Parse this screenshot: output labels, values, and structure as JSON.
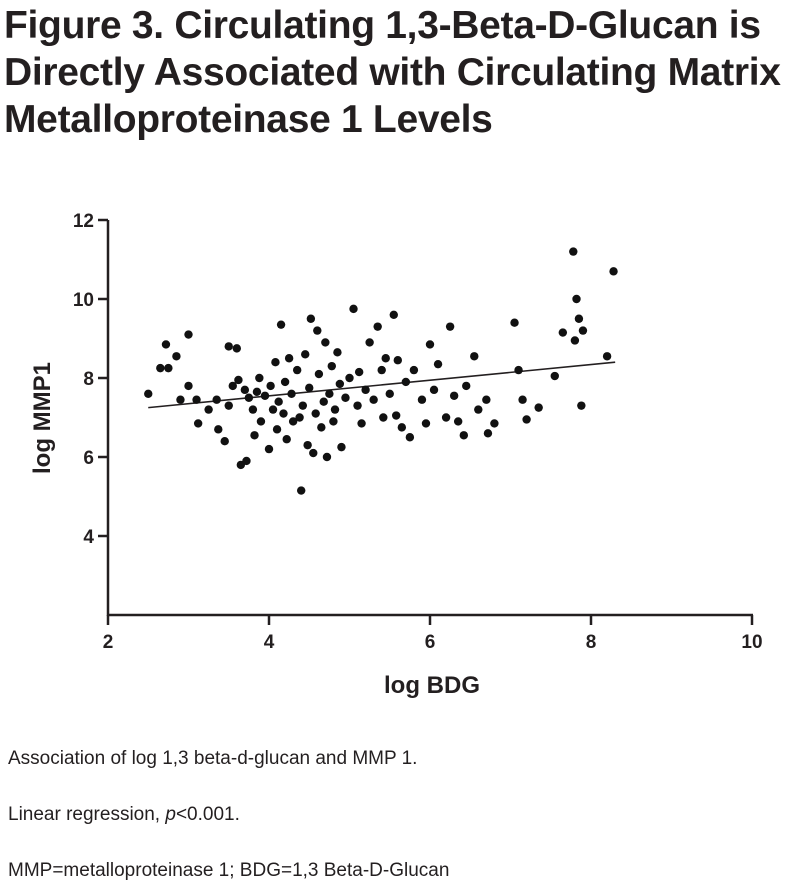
{
  "figure": {
    "title_lines": [
      "Figure 3. Circulating 1,3-Beta-D-Glucan is",
      "Directly Associated with Circulating Matrix",
      "Metalloproteinase 1 Levels"
    ]
  },
  "captions": {
    "line1": "Association of log 1,3 beta-d-glucan and MMP 1.",
    "line2_prefix": "Linear regression, ",
    "line2_p": "p",
    "line2_suffix": "<0.001.",
    "line3": "MMP=metalloproteinase 1; BDG=1,3 Beta-D-Glucan"
  },
  "chart_data": {
    "type": "scatter",
    "title": "",
    "xlabel": "log BDG",
    "ylabel": "log MMP1",
    "xlim": [
      2,
      10
    ],
    "ylim": [
      2,
      12
    ],
    "xticks": [
      "2",
      "4",
      "6",
      "8",
      "10"
    ],
    "yticks": [
      "4",
      "6",
      "8",
      "10",
      "12"
    ],
    "grid": false,
    "regression_line": {
      "x": [
        2.5,
        8.3
      ],
      "y": [
        7.25,
        8.4
      ]
    },
    "points": [
      [
        2.5,
        7.6
      ],
      [
        2.65,
        8.25
      ],
      [
        2.72,
        8.85
      ],
      [
        2.75,
        8.25
      ],
      [
        2.85,
        8.55
      ],
      [
        2.9,
        7.45
      ],
      [
        3.0,
        9.1
      ],
      [
        3.0,
        7.8
      ],
      [
        3.1,
        7.45
      ],
      [
        3.12,
        6.85
      ],
      [
        3.25,
        7.2
      ],
      [
        3.35,
        7.45
      ],
      [
        3.37,
        6.7
      ],
      [
        3.45,
        6.4
      ],
      [
        3.5,
        8.8
      ],
      [
        3.5,
        7.3
      ],
      [
        3.55,
        7.8
      ],
      [
        3.6,
        8.75
      ],
      [
        3.62,
        7.95
      ],
      [
        3.65,
        5.8
      ],
      [
        3.7,
        7.7
      ],
      [
        3.72,
        5.9
      ],
      [
        3.75,
        7.5
      ],
      [
        3.8,
        7.2
      ],
      [
        3.82,
        6.55
      ],
      [
        3.85,
        7.65
      ],
      [
        3.88,
        8.0
      ],
      [
        3.9,
        6.9
      ],
      [
        3.95,
        7.55
      ],
      [
        4.0,
        6.2
      ],
      [
        4.02,
        7.8
      ],
      [
        4.05,
        7.2
      ],
      [
        4.08,
        8.4
      ],
      [
        4.1,
        6.7
      ],
      [
        4.12,
        7.4
      ],
      [
        4.15,
        9.35
      ],
      [
        4.18,
        7.1
      ],
      [
        4.2,
        7.9
      ],
      [
        4.22,
        6.45
      ],
      [
        4.25,
        8.5
      ],
      [
        4.28,
        7.6
      ],
      [
        4.3,
        6.9
      ],
      [
        4.35,
        8.2
      ],
      [
        4.38,
        7.0
      ],
      [
        4.4,
        5.15
      ],
      [
        4.42,
        7.3
      ],
      [
        4.45,
        8.6
      ],
      [
        4.48,
        6.3
      ],
      [
        4.5,
        7.75
      ],
      [
        4.52,
        9.5
      ],
      [
        4.55,
        6.1
      ],
      [
        4.58,
        7.1
      ],
      [
        4.6,
        9.2
      ],
      [
        4.62,
        8.1
      ],
      [
        4.65,
        6.75
      ],
      [
        4.68,
        7.4
      ],
      [
        4.7,
        8.9
      ],
      [
        4.72,
        6.0
      ],
      [
        4.75,
        7.6
      ],
      [
        4.78,
        8.3
      ],
      [
        4.8,
        6.9
      ],
      [
        4.82,
        7.2
      ],
      [
        4.85,
        8.65
      ],
      [
        4.88,
        7.85
      ],
      [
        4.9,
        6.25
      ],
      [
        4.95,
        7.5
      ],
      [
        5.0,
        8.0
      ],
      [
        5.05,
        9.75
      ],
      [
        5.1,
        7.3
      ],
      [
        5.12,
        8.15
      ],
      [
        5.15,
        6.85
      ],
      [
        5.2,
        7.7
      ],
      [
        5.25,
        8.9
      ],
      [
        5.3,
        7.45
      ],
      [
        5.35,
        9.3
      ],
      [
        5.4,
        8.2
      ],
      [
        5.42,
        7.0
      ],
      [
        5.45,
        8.5
      ],
      [
        5.5,
        7.6
      ],
      [
        5.55,
        9.6
      ],
      [
        5.58,
        7.05
      ],
      [
        5.6,
        8.45
      ],
      [
        5.65,
        6.75
      ],
      [
        5.7,
        7.9
      ],
      [
        5.75,
        6.5
      ],
      [
        5.8,
        8.2
      ],
      [
        5.9,
        7.45
      ],
      [
        5.95,
        6.85
      ],
      [
        6.0,
        8.85
      ],
      [
        6.05,
        7.7
      ],
      [
        6.1,
        8.35
      ],
      [
        6.2,
        7.0
      ],
      [
        6.25,
        9.3
      ],
      [
        6.3,
        7.55
      ],
      [
        6.35,
        6.9
      ],
      [
        6.42,
        6.55
      ],
      [
        6.45,
        7.8
      ],
      [
        6.55,
        8.55
      ],
      [
        6.6,
        7.2
      ],
      [
        6.7,
        7.45
      ],
      [
        6.72,
        6.6
      ],
      [
        6.8,
        6.85
      ],
      [
        7.05,
        9.4
      ],
      [
        7.1,
        8.2
      ],
      [
        7.15,
        7.45
      ],
      [
        7.2,
        6.95
      ],
      [
        7.35,
        7.25
      ],
      [
        7.55,
        8.05
      ],
      [
        7.65,
        9.15
      ],
      [
        7.78,
        11.2
      ],
      [
        7.8,
        8.95
      ],
      [
        7.82,
        10.0
      ],
      [
        7.85,
        9.5
      ],
      [
        7.88,
        7.3
      ],
      [
        7.9,
        9.2
      ],
      [
        8.2,
        8.55
      ],
      [
        8.28,
        10.7
      ]
    ]
  }
}
